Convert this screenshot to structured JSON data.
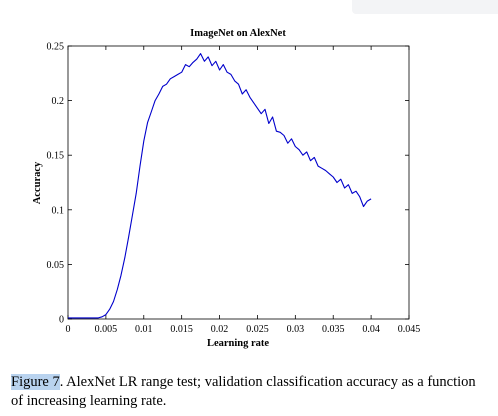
{
  "chart_data": {
    "type": "line",
    "title": "ImageNet on AlexNet",
    "xlabel": "Learning rate",
    "ylabel": "Accuracy",
    "xlim": [
      0,
      0.045
    ],
    "ylim": [
      0,
      0.25
    ],
    "xticks": [
      "0",
      "0.005",
      "0.01",
      "0.015",
      "0.02",
      "0.025",
      "0.03",
      "0.035",
      "0.04",
      "0.045"
    ],
    "yticks": [
      "0",
      "0.05",
      "0.1",
      "0.15",
      "0.2",
      "0.25"
    ],
    "grid": false,
    "series": [
      {
        "color": "#0000cc",
        "x": [
          0.0,
          0.001,
          0.002,
          0.003,
          0.004,
          0.0045,
          0.005,
          0.0055,
          0.006,
          0.0065,
          0.007,
          0.0075,
          0.008,
          0.0085,
          0.009,
          0.0095,
          0.01,
          0.0105,
          0.011,
          0.0115,
          0.012,
          0.0125,
          0.013,
          0.0135,
          0.014,
          0.0145,
          0.015,
          0.0155,
          0.016,
          0.0165,
          0.017,
          0.0175,
          0.018,
          0.0185,
          0.019,
          0.0195,
          0.02,
          0.0205,
          0.021,
          0.0215,
          0.022,
          0.0225,
          0.023,
          0.0235,
          0.024,
          0.0245,
          0.025,
          0.0255,
          0.026,
          0.0265,
          0.027,
          0.0275,
          0.028,
          0.0285,
          0.029,
          0.0295,
          0.03,
          0.0305,
          0.031,
          0.0315,
          0.032,
          0.0325,
          0.033,
          0.0335,
          0.034,
          0.0345,
          0.035,
          0.0355,
          0.036,
          0.0365,
          0.037,
          0.0375,
          0.038,
          0.0385,
          0.039,
          0.0395,
          0.04
        ],
        "y": [
          0.001,
          0.001,
          0.001,
          0.001,
          0.001,
          0.002,
          0.004,
          0.009,
          0.016,
          0.027,
          0.04,
          0.056,
          0.075,
          0.095,
          0.115,
          0.14,
          0.163,
          0.18,
          0.19,
          0.2,
          0.206,
          0.213,
          0.215,
          0.22,
          0.222,
          0.224,
          0.226,
          0.233,
          0.231,
          0.235,
          0.238,
          0.243,
          0.236,
          0.24,
          0.232,
          0.236,
          0.228,
          0.233,
          0.226,
          0.224,
          0.218,
          0.215,
          0.206,
          0.21,
          0.203,
          0.198,
          0.193,
          0.188,
          0.192,
          0.179,
          0.185,
          0.172,
          0.171,
          0.168,
          0.161,
          0.165,
          0.158,
          0.155,
          0.15,
          0.153,
          0.145,
          0.148,
          0.14,
          0.138,
          0.136,
          0.133,
          0.13,
          0.125,
          0.128,
          0.12,
          0.123,
          0.115,
          0.117,
          0.112,
          0.103,
          0.108,
          0.11
        ]
      }
    ]
  },
  "caption": {
    "figure_label": "Figure 7",
    "text": ". AlexNet LR range test; validation classification accuracy as a function of increasing learning rate."
  },
  "colors": {
    "line": "#0000cc",
    "highlight": "#b9d3ef"
  }
}
